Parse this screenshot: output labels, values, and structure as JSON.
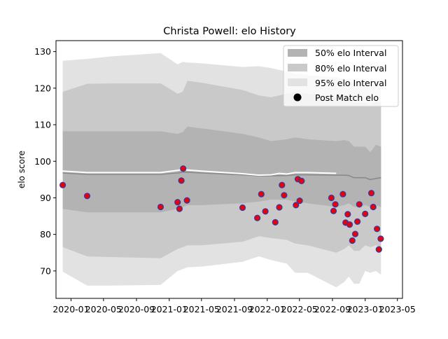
{
  "chart_data": {
    "type": "scatter",
    "title": "Christa Powell: elo History",
    "xlabel": "",
    "ylabel": "elo score",
    "ylim": [
      62.5,
      133
    ],
    "xlim": [
      "2019-11-06",
      "2023-05-20"
    ],
    "yticks": [
      70,
      80,
      90,
      100,
      110,
      120,
      130
    ],
    "xticks": [
      "2020-01",
      "2020-05",
      "2020-09",
      "2021-01",
      "2021-05",
      "2021-09",
      "2022-01",
      "2022-05",
      "2022-09",
      "2023-01",
      "2023-05"
    ],
    "legend_position": "top-right",
    "legend": [
      {
        "label": "50% elo Interval",
        "kind": "band",
        "color": "#b3b3b3"
      },
      {
        "label": "80% elo Interval",
        "kind": "band",
        "color": "#c9c9c9"
      },
      {
        "label": "95% elo Interval",
        "kind": "band",
        "color": "#e2e2e2"
      },
      {
        "label": "Post Match elo",
        "kind": "point",
        "color": "#000000"
      }
    ],
    "colors": {
      "band50": "#b3b3b3",
      "band80": "#c9c9c9",
      "band95": "#e2e2e2",
      "marker_fill": "#e8000b",
      "marker_edge": "#2f3ca6",
      "mean_line": "#8a8a8a",
      "median_line": "#ffffff"
    },
    "bands": {
      "x": [
        "2019-12-01",
        "2020-03-01",
        "2020-06-01",
        "2020-11-30",
        "2021-02-01",
        "2021-02-20",
        "2021-03-10",
        "2021-05-01",
        "2021-10-01",
        "2021-12-01",
        "2022-01-15",
        "2022-03-15",
        "2022-04-15",
        "2022-06-01",
        "2022-09-15",
        "2022-10-15",
        "2022-11-01",
        "2022-11-20",
        "2022-12-10",
        "2023-01-01",
        "2023-01-20",
        "2023-02-10",
        "2023-03-01"
      ],
      "p95_low": [
        69.8,
        66.0,
        66.0,
        66.2,
        70.0,
        70.5,
        71.0,
        71.2,
        72.5,
        74.0,
        73.0,
        72.0,
        69.5,
        69.5,
        65.5,
        67.0,
        68.5,
        66.5,
        66.5,
        70.0,
        69.5,
        70.0,
        69.0
      ],
      "p80_low": [
        76.5,
        74.0,
        73.8,
        73.5,
        76.0,
        76.5,
        77.0,
        77.0,
        78.0,
        79.5,
        79.0,
        78.5,
        77.5,
        77.0,
        75.0,
        76.0,
        77.0,
        75.5,
        75.5,
        77.0,
        76.5,
        77.0,
        76.5
      ],
      "p50_low": [
        87.0,
        86.0,
        86.0,
        86.0,
        87.0,
        87.5,
        88.0,
        88.0,
        88.5,
        89.0,
        89.5,
        89.5,
        89.0,
        88.5,
        87.5,
        88.0,
        88.5,
        87.5,
        87.5,
        88.0,
        87.5,
        88.0,
        87.5
      ],
      "p50_high": [
        108.2,
        108.2,
        108.2,
        108.2,
        107.5,
        108.0,
        109.5,
        109.0,
        107.5,
        106.5,
        105.5,
        106.0,
        106.5,
        106.0,
        105.5,
        105.8,
        105.5,
        104.0,
        104.0,
        104.0,
        102.5,
        104.5,
        104.0
      ],
      "p80_high": [
        119.0,
        121.2,
        121.3,
        121.3,
        118.5,
        119.0,
        122.0,
        121.5,
        119.5,
        118.0,
        117.5,
        118.5,
        119.0,
        118.5,
        117.5,
        118.0,
        117.5,
        116.0,
        116.0,
        116.0,
        115.5,
        116.5,
        116.0
      ],
      "p95_high": [
        127.5,
        128.0,
        128.7,
        129.6,
        126.5,
        127.2,
        127.0,
        126.8,
        125.8,
        126.0,
        125.5,
        124.5,
        124.0,
        123.5,
        123.0,
        122.5,
        122.0,
        121.5,
        121.5,
        122.0,
        121.0,
        122.0,
        121.5
      ]
    },
    "mean_line": {
      "x": [
        "2019-12-01",
        "2020-03-01",
        "2020-06-01",
        "2020-11-30",
        "2021-02-01",
        "2021-02-20",
        "2021-03-10",
        "2021-05-01",
        "2021-10-01",
        "2021-12-01",
        "2022-01-15",
        "2022-03-15",
        "2022-04-15",
        "2022-06-01",
        "2022-09-15",
        "2022-10-15",
        "2022-11-01",
        "2022-11-20",
        "2022-12-10",
        "2023-01-01",
        "2023-01-20",
        "2023-02-10",
        "2023-03-01"
      ],
      "y": [
        96.8,
        96.4,
        96.4,
        96.4,
        96.8,
        97.0,
        97.0,
        96.8,
        96.3,
        96.0,
        96.0,
        96.1,
        96.3,
        96.3,
        96.2,
        96.2,
        96.1,
        95.5,
        95.5,
        95.5,
        95.0,
        95.3,
        95.5
      ]
    },
    "median_line": {
      "x": [
        "2019-12-01",
        "2020-03-01",
        "2020-06-01",
        "2020-11-30",
        "2021-02-01",
        "2021-02-20",
        "2021-03-10",
        "2021-05-01",
        "2021-10-01",
        "2021-12-01",
        "2022-01-15",
        "2022-02-15",
        "2022-03-15",
        "2022-04-15",
        "2022-06-01",
        "2022-09-15"
      ],
      "y": [
        97.3,
        96.9,
        96.9,
        96.9,
        97.5,
        97.8,
        97.6,
        97.3,
        96.6,
        96.2,
        96.3,
        96.7,
        96.5,
        96.9,
        96.9,
        96.7
      ]
    },
    "points": [
      {
        "x": "2019-12-01",
        "y": 93.5
      },
      {
        "x": "2020-03-01",
        "y": 90.5
      },
      {
        "x": "2020-11-30",
        "y": 87.5
      },
      {
        "x": "2021-02-01",
        "y": 88.8
      },
      {
        "x": "2021-02-08",
        "y": 87.0
      },
      {
        "x": "2021-02-15",
        "y": 94.7
      },
      {
        "x": "2021-02-22",
        "y": 98.0
      },
      {
        "x": "2021-03-08",
        "y": 89.3
      },
      {
        "x": "2021-10-01",
        "y": 87.3
      },
      {
        "x": "2021-11-25",
        "y": 84.5
      },
      {
        "x": "2021-12-10",
        "y": 91.0
      },
      {
        "x": "2021-12-25",
        "y": 86.3
      },
      {
        "x": "2022-01-31",
        "y": 83.3
      },
      {
        "x": "2022-02-15",
        "y": 87.4
      },
      {
        "x": "2022-02-25",
        "y": 93.5
      },
      {
        "x": "2022-03-05",
        "y": 90.7
      },
      {
        "x": "2022-04-18",
        "y": 88.0
      },
      {
        "x": "2022-04-25",
        "y": 95.1
      },
      {
        "x": "2022-05-02",
        "y": 89.2
      },
      {
        "x": "2022-05-09",
        "y": 94.6
      },
      {
        "x": "2022-08-28",
        "y": 90.0
      },
      {
        "x": "2022-09-05",
        "y": 86.4
      },
      {
        "x": "2022-09-12",
        "y": 88.2
      },
      {
        "x": "2022-10-10",
        "y": 91.0
      },
      {
        "x": "2022-10-20",
        "y": 83.2
      },
      {
        "x": "2022-10-28",
        "y": 85.5
      },
      {
        "x": "2022-11-04",
        "y": 82.7
      },
      {
        "x": "2022-11-14",
        "y": 78.3
      },
      {
        "x": "2022-11-25",
        "y": 80.1
      },
      {
        "x": "2022-12-03",
        "y": 83.5
      },
      {
        "x": "2022-12-10",
        "y": 88.2
      },
      {
        "x": "2023-01-01",
        "y": 85.6
      },
      {
        "x": "2023-01-24",
        "y": 91.3
      },
      {
        "x": "2023-01-31",
        "y": 87.5
      },
      {
        "x": "2023-02-14",
        "y": 81.5
      },
      {
        "x": "2023-02-21",
        "y": 75.9
      },
      {
        "x": "2023-02-28",
        "y": 78.8
      }
    ]
  }
}
